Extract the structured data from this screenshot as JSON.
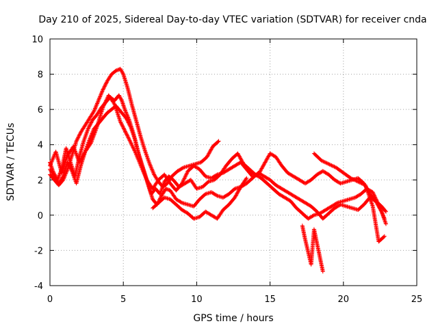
{
  "chart_data": {
    "type": "scatter",
    "title": "Day 210 of 2025, Sidereal Day-to-day VTEC variation (SDTVAR) for receiver cnda",
    "xlabel": "GPS time / hours",
    "ylabel": "SDTVAR / TECUs",
    "xlim": [
      0,
      25
    ],
    "ylim": [
      -4,
      10
    ],
    "xticks": [
      0,
      5,
      10,
      15,
      20,
      25
    ],
    "yticks": [
      -4,
      -2,
      0,
      2,
      4,
      6,
      8,
      10
    ],
    "grid": true,
    "marker": "+",
    "color": "#ff0000",
    "series": [
      {
        "name": "s1",
        "x": [
          0.0,
          0.2,
          0.5,
          0.8,
          1.1,
          1.4,
          1.7,
          2.0,
          2.3,
          2.6,
          2.9,
          3.2,
          3.5,
          3.8,
          4.1,
          4.4,
          4.7,
          4.9,
          5.1,
          5.4,
          5.7,
          6.0,
          6.3,
          6.6,
          6.9,
          7.2,
          7.5,
          7.8,
          8.1,
          8.4,
          8.8,
          9.2,
          9.6,
          10.0,
          10.4,
          10.8,
          11.2,
          11.6,
          12.0,
          12.4,
          12.8,
          13.2,
          13.6,
          14.0,
          14.4,
          14.8,
          15.2,
          15.6,
          16.0,
          16.4,
          16.8,
          17.2,
          17.6,
          18.0,
          18.4,
          18.8,
          19.2,
          19.6,
          20.0,
          20.4,
          20.8,
          21.2,
          21.6,
          22.0,
          22.4,
          22.8
        ],
        "y": [
          3.0,
          2.5,
          2.0,
          2.6,
          3.8,
          3.0,
          2.2,
          3.3,
          4.2,
          4.9,
          5.4,
          5.7,
          6.1,
          6.4,
          6.7,
          6.5,
          6.8,
          6.5,
          6.0,
          5.4,
          4.6,
          3.6,
          2.8,
          2.0,
          1.2,
          1.5,
          1.2,
          1.9,
          2.2,
          2.0,
          1.6,
          1.8,
          2.0,
          1.5,
          1.6,
          1.9,
          2.0,
          2.3,
          2.8,
          3.2,
          3.5,
          2.9,
          2.6,
          2.3,
          2.1,
          1.8,
          1.5,
          1.2,
          1.0,
          0.8,
          0.4,
          0.1,
          -0.2,
          0.0,
          0.1,
          0.3,
          0.5,
          0.7,
          0.8,
          0.9,
          1.0,
          1.2,
          1.5,
          1.3,
          0.6,
          -0.2
        ]
      },
      {
        "name": "s2",
        "x": [
          0.0,
          0.3,
          0.6,
          0.9,
          1.2,
          1.5,
          1.8,
          2.1,
          2.4,
          2.7,
          3.0,
          3.3,
          3.6,
          3.9,
          4.2,
          4.5,
          4.8,
          5.0,
          5.2,
          5.5,
          5.8,
          6.1,
          6.4,
          6.7,
          7.0,
          7.3,
          7.6,
          7.9,
          8.2,
          8.6,
          9.0,
          9.4,
          9.8,
          10.2,
          10.6,
          11.0,
          11.4,
          11.8,
          12.2,
          12.6,
          13.0,
          13.4,
          13.8,
          14.2,
          14.6,
          15.0,
          15.4,
          15.8,
          16.2,
          16.6,
          17.0,
          17.4,
          17.8,
          18.2,
          18.6,
          19.0,
          19.4,
          19.8,
          20.2,
          20.6,
          21.0,
          21.4,
          21.8,
          22.2,
          22.6,
          22.9
        ],
        "y": [
          2.6,
          2.2,
          1.8,
          2.2,
          3.0,
          2.5,
          1.8,
          2.8,
          3.6,
          4.3,
          4.9,
          5.2,
          5.5,
          5.8,
          6.0,
          6.2,
          5.9,
          5.7,
          5.5,
          5.0,
          4.3,
          3.3,
          2.5,
          1.7,
          0.9,
          0.6,
          1.1,
          1.5,
          1.4,
          0.9,
          0.7,
          0.6,
          0.5,
          0.9,
          1.2,
          1.3,
          1.1,
          1.0,
          1.2,
          1.5,
          1.6,
          1.8,
          2.1,
          2.4,
          2.2,
          2.0,
          1.7,
          1.5,
          1.3,
          1.1,
          0.9,
          0.7,
          0.5,
          0.2,
          -0.2,
          0.1,
          0.4,
          0.6,
          0.5,
          0.4,
          0.3,
          0.6,
          1.0,
          0.8,
          0.2,
          -0.5
        ]
      },
      {
        "name": "s3",
        "x": [
          0.0,
          0.4,
          0.8,
          1.2,
          1.6,
          2.0,
          2.4,
          2.8,
          3.2,
          3.6,
          4.0,
          4.4,
          4.8,
          5.1,
          5.4,
          5.8,
          6.2,
          6.6,
          7.0,
          7.4,
          7.8,
          8.2,
          8.6,
          9.0,
          9.4,
          9.8,
          10.2,
          10.6,
          11.0,
          11.4,
          11.8,
          12.2,
          12.6,
          13.0,
          13.4,
          13.8,
          14.2,
          14.6,
          15.0,
          15.4,
          15.8,
          16.2,
          16.6,
          17.0,
          17.4,
          17.8,
          18.2,
          18.6,
          19.0,
          19.4,
          19.8,
          20.2,
          20.6,
          21.0,
          21.4,
          21.8,
          22.2,
          22.6,
          22.9
        ],
        "y": [
          2.8,
          3.6,
          2.4,
          3.4,
          3.9,
          3.0,
          3.6,
          4.1,
          5.0,
          6.1,
          6.8,
          6.3,
          5.3,
          4.8,
          4.3,
          3.6,
          2.8,
          2.0,
          1.5,
          2.0,
          2.3,
          1.8,
          1.4,
          1.8,
          2.5,
          2.8,
          2.6,
          2.2,
          2.1,
          2.3,
          2.4,
          2.6,
          2.8,
          3.0,
          2.6,
          2.2,
          2.3,
          2.9,
          3.5,
          3.3,
          2.8,
          2.4,
          2.2,
          2.0,
          1.8,
          2.0,
          2.3,
          2.5,
          2.3,
          2.0,
          1.8,
          1.9,
          2.0,
          2.1,
          1.8,
          1.2,
          0.8,
          0.5,
          0.2
        ]
      },
      {
        "name": "s4",
        "x": [
          0.0,
          0.3,
          0.6,
          0.9,
          1.2,
          1.5,
          1.8,
          2.1,
          2.4,
          2.7,
          3.0,
          3.3,
          3.6,
          3.9,
          4.2,
          4.5,
          4.8,
          5.0,
          5.3,
          5.6,
          5.9,
          6.2,
          6.5,
          6.8,
          7.1,
          7.4,
          7.7,
          8.0,
          8.3,
          8.7,
          9.1,
          9.5,
          9.9,
          10.3,
          10.7,
          11.1,
          11.5
        ],
        "y": [
          2.3,
          2.0,
          1.7,
          2.0,
          2.6,
          3.4,
          4.2,
          4.7,
          5.1,
          5.5,
          5.9,
          6.5,
          7.1,
          7.6,
          8.0,
          8.2,
          8.3,
          8.0,
          7.2,
          6.2,
          5.3,
          4.4,
          3.6,
          2.9,
          2.3,
          1.9,
          1.6,
          1.8,
          2.2,
          2.5,
          2.7,
          2.8,
          2.9,
          3.0,
          3.3,
          3.9,
          4.2
        ]
      },
      {
        "name": "s5",
        "x": [
          7.0,
          7.4,
          7.8,
          8.2,
          8.6,
          9.0,
          9.4,
          9.8,
          10.2,
          10.6,
          11.0,
          11.4,
          11.8,
          12.2,
          12.6,
          13.0,
          13.4
        ],
        "y": [
          0.4,
          0.7,
          1.0,
          0.9,
          0.6,
          0.3,
          0.1,
          -0.2,
          -0.1,
          0.2,
          0.0,
          -0.2,
          0.3,
          0.6,
          1.0,
          1.6,
          2.1
        ]
      },
      {
        "name": "s6",
        "x": [
          17.2,
          17.4,
          17.6,
          17.8,
          18.0,
          18.2,
          18.4,
          18.6
        ],
        "y": [
          -0.6,
          -1.4,
          -2.1,
          -2.8,
          -0.8,
          -1.6,
          -2.4,
          -3.2
        ]
      },
      {
        "name": "s7",
        "x": [
          18.0,
          18.5,
          19.0,
          19.5,
          20.0,
          20.5,
          21.0,
          21.5,
          22.0,
          22.4,
          22.8
        ],
        "y": [
          3.5,
          3.1,
          2.9,
          2.7,
          2.4,
          2.1,
          1.9,
          1.7,
          0.5,
          -1.5,
          -1.2
        ]
      }
    ]
  }
}
